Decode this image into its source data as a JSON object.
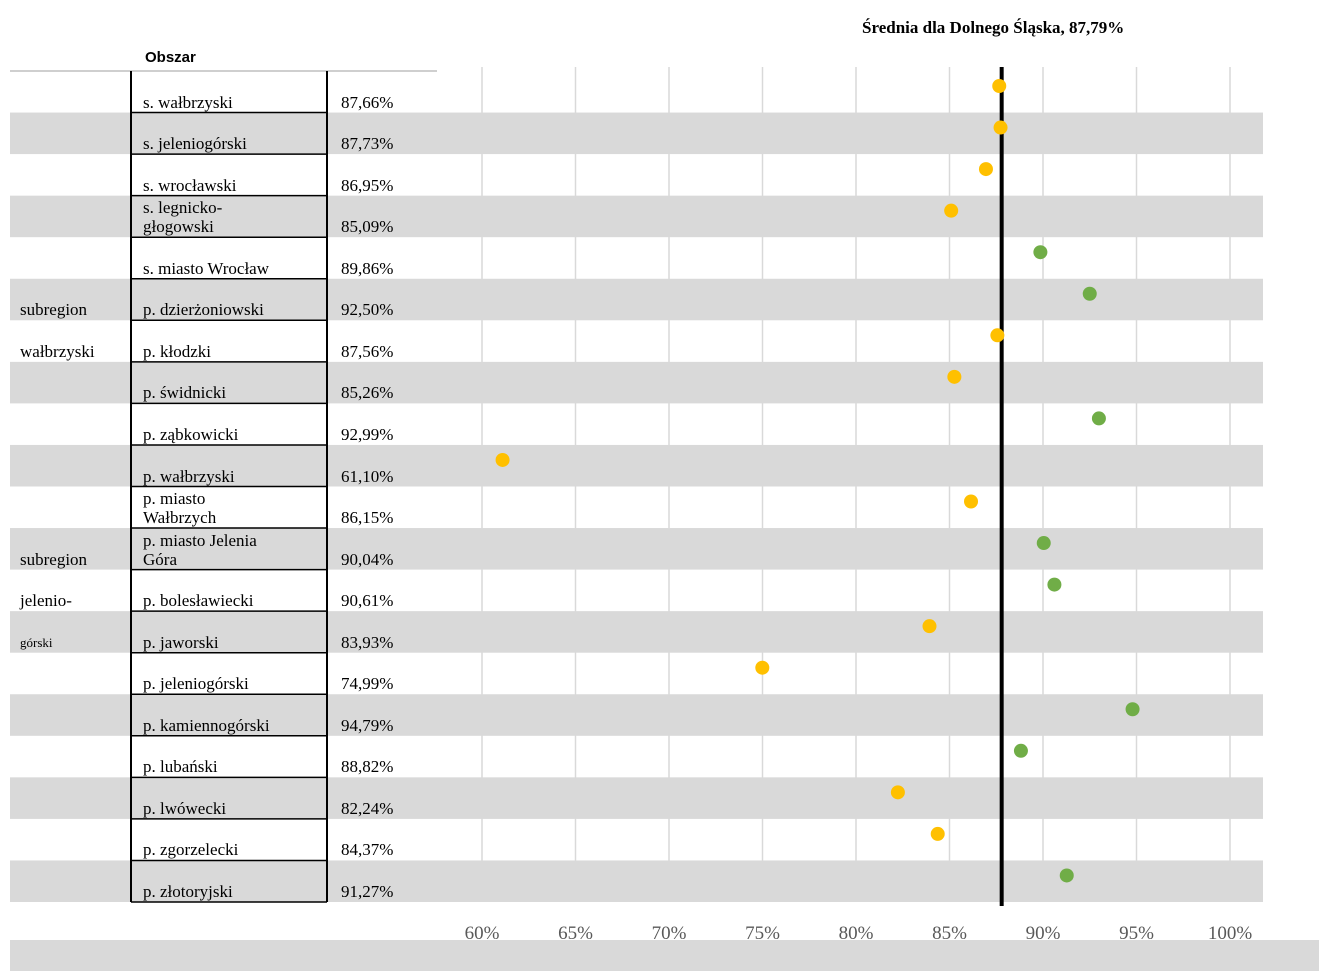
{
  "chart_data": {
    "type": "dot",
    "title": "Średnia dla Dolnego Śląska, 87,79%",
    "header": "Obszar",
    "average": 87.79,
    "group_labels": [
      "subregion",
      "wałbrzyski",
      "subregion",
      "jelenio-",
      "górski"
    ],
    "categories": [
      "s. wałbrzyski",
      "s. jeleniogórski",
      "s.  wrocławski",
      "s. legnicko-\ngłogowski",
      "s. miasto Wrocław",
      "p. dzierżoniowski",
      "p.  kłodzki",
      "p. świdnicki",
      "p. ząbkowicki",
      "p. wałbrzyski",
      "p. miasto\nWałbrzych",
      "p. miasto Jelenia\nGóra",
      "p. bolesławiecki",
      "p. jaworski",
      "p. jeleniogórski",
      "p. kamiennogórski",
      "p. lubański",
      "p. lwówecki",
      "p. zgorzelecki",
      "p. złotoryjski"
    ],
    "values": [
      87.66,
      87.73,
      86.95,
      85.09,
      89.86,
      92.5,
      87.56,
      85.26,
      92.99,
      61.1,
      86.15,
      90.04,
      90.61,
      83.93,
      74.99,
      94.79,
      88.82,
      82.24,
      84.37,
      91.27
    ],
    "value_labels": [
      "87,66%",
      "87,73%",
      "86,95%",
      "85,09%",
      "89,86%",
      "92,50%",
      "87,56%",
      "85,26%",
      "92,99%",
      "61,10%",
      "86,15%",
      "90,04%",
      "90,61%",
      "83,93%",
      "74,99%",
      "94,79%",
      "88,82%",
      "82,24%",
      "84,37%",
      "91,27%"
    ],
    "above_color": "#70ad47",
    "below_color": "#ffc000",
    "xlim": [
      60,
      100
    ],
    "xticks": [
      {
        "value": 60,
        "label": "60%"
      },
      {
        "value": 65,
        "label": "65%"
      },
      {
        "value": 70,
        "label": "70%"
      },
      {
        "value": 75,
        "label": "75%"
      },
      {
        "value": 80,
        "label": "80%"
      },
      {
        "value": 85,
        "label": "85%"
      },
      {
        "value": 90,
        "label": "90%"
      },
      {
        "value": 95,
        "label": "95%"
      },
      {
        "value": 100,
        "label": "100%"
      }
    ],
    "grid": true
  }
}
